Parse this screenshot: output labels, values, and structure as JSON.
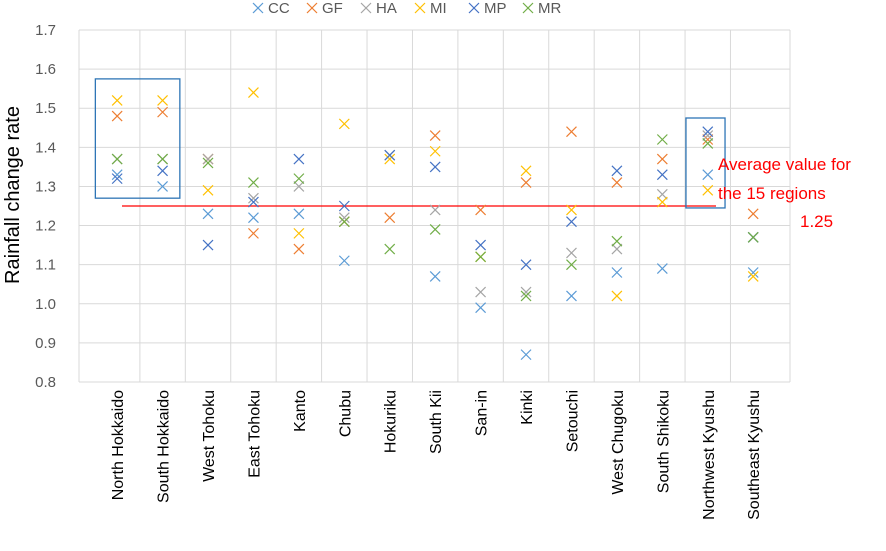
{
  "chart_data": {
    "type": "scatter",
    "title": "",
    "xlabel": "",
    "ylabel": "Rainfall change rate",
    "ylim": [
      0.8,
      1.7
    ],
    "yticks": [
      "0.8",
      "0.9",
      "1.0",
      "1.1",
      "1.2",
      "1.3",
      "1.4",
      "1.5",
      "1.6",
      "1.7"
    ],
    "grid": true,
    "legend_position": "top",
    "categories": [
      "North Hokkaido",
      "South Hokkaido",
      "West Tohoku",
      "East Tohoku",
      "Kanto",
      "Chubu",
      "Hokuriku",
      "South Kii",
      "San-in",
      "Kinki",
      "Setouchi",
      "West Chugoku",
      "South Shikoku",
      "Northwest Kyushu",
      "Southeast Kyushu"
    ],
    "series": [
      {
        "name": "CC",
        "color": "#5b9bd5",
        "values": [
          1.33,
          1.3,
          1.23,
          1.22,
          1.23,
          1.11,
          null,
          1.07,
          0.99,
          0.87,
          1.02,
          1.08,
          1.09,
          1.33,
          1.08
        ]
      },
      {
        "name": "GF",
        "color": "#ed7d31",
        "values": [
          1.48,
          1.49,
          1.37,
          1.18,
          1.14,
          1.21,
          1.22,
          1.43,
          1.24,
          1.31,
          1.44,
          1.31,
          1.37,
          1.42,
          1.23
        ]
      },
      {
        "name": "HA",
        "color": "#a5a5a5",
        "values": [
          1.37,
          1.37,
          1.37,
          1.27,
          1.3,
          1.22,
          1.38,
          1.24,
          1.03,
          1.03,
          1.13,
          1.14,
          1.28,
          1.43,
          1.17
        ]
      },
      {
        "name": "MI",
        "color": "#ffc000",
        "values": [
          1.52,
          1.52,
          1.29,
          1.54,
          1.18,
          1.46,
          1.37,
          1.39,
          1.12,
          1.34,
          1.24,
          1.02,
          1.26,
          1.29,
          1.07
        ]
      },
      {
        "name": "MP",
        "color": "#4472c4",
        "values": [
          1.32,
          1.34,
          1.15,
          1.26,
          1.37,
          1.25,
          1.38,
          1.35,
          1.15,
          1.1,
          1.21,
          1.34,
          1.33,
          1.44,
          1.17
        ]
      },
      {
        "name": "MR",
        "color": "#70ad47",
        "values": [
          1.37,
          1.37,
          1.36,
          1.31,
          1.32,
          1.21,
          1.14,
          1.19,
          1.12,
          1.02,
          1.1,
          1.16,
          1.42,
          1.41,
          1.17
        ]
      }
    ],
    "reference_line": {
      "value": 1.25,
      "color": "#ff0000"
    },
    "annotation": {
      "line1": "Average value for",
      "line2": "the 15 regions",
      "line3": "1.25"
    },
    "highlight_boxes": [
      {
        "categories": [
          "North Hokkaido",
          "South Hokkaido"
        ],
        "range": [
          1.27,
          1.575
        ],
        "color": "#2e75b6"
      },
      {
        "categories": [
          "Northwest Kyushu"
        ],
        "range": [
          1.245,
          1.475
        ],
        "color": "#2e75b6"
      }
    ]
  }
}
